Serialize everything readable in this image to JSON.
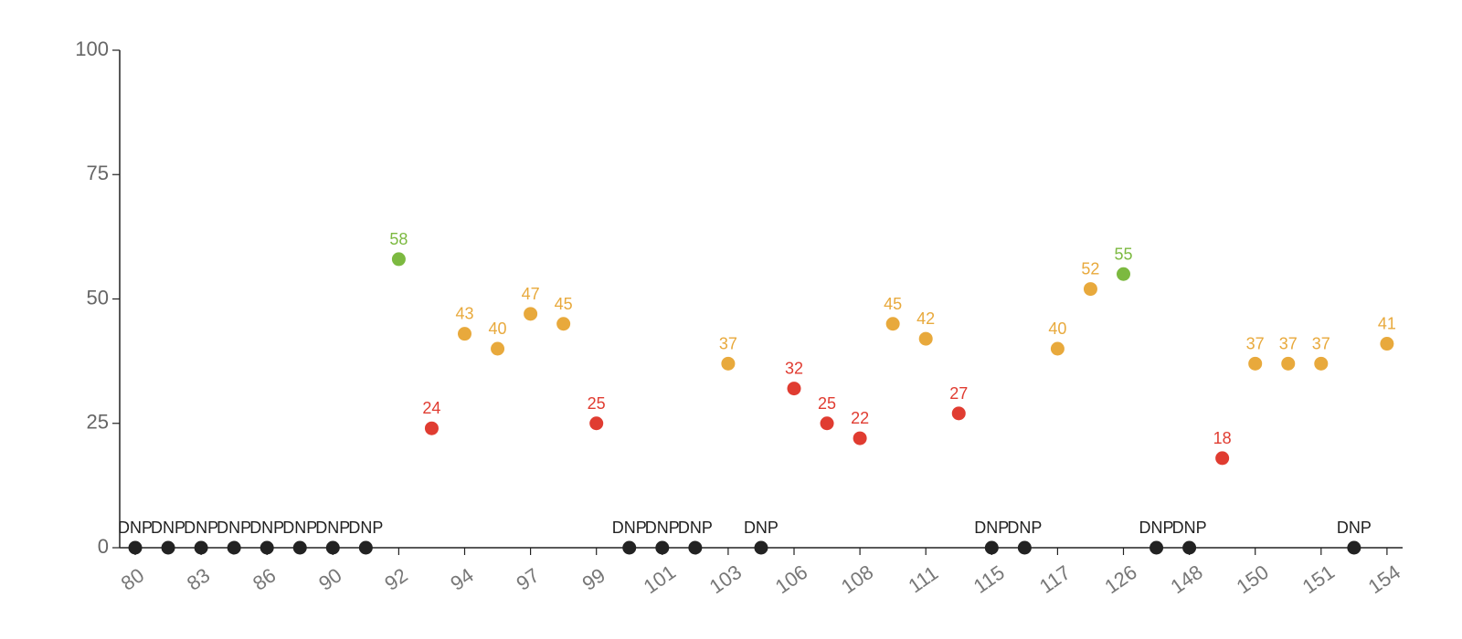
{
  "chart_data": {
    "type": "scatter",
    "y_ticks": [
      0,
      25,
      50,
      75,
      100
    ],
    "ylim": [
      0,
      100
    ],
    "x_tick_labels": [
      "80",
      "83",
      "86",
      "90",
      "92",
      "94",
      "97",
      "99",
      "101",
      "103",
      "106",
      "108",
      "111",
      "115",
      "117",
      "126",
      "148",
      "150",
      "151",
      "154"
    ],
    "dnp_text": "DNP",
    "colors": {
      "dnp": "#222222",
      "low": "#e03c31",
      "mid": "#e8a93c",
      "high": "#7cb940"
    },
    "points": [
      {
        "value": 0,
        "label": "DNP",
        "status": "dnp"
      },
      {
        "value": 0,
        "label": "DNP",
        "status": "dnp"
      },
      {
        "value": 0,
        "label": "DNP",
        "status": "dnp"
      },
      {
        "value": 0,
        "label": "DNP",
        "status": "dnp"
      },
      {
        "value": 0,
        "label": "DNP",
        "status": "dnp"
      },
      {
        "value": 0,
        "label": "DNP",
        "status": "dnp"
      },
      {
        "value": 0,
        "label": "DNP",
        "status": "dnp"
      },
      {
        "value": 0,
        "label": "DNP",
        "status": "dnp"
      },
      {
        "value": 58,
        "label": "58",
        "status": "high"
      },
      {
        "value": 24,
        "label": "24",
        "status": "low"
      },
      {
        "value": 43,
        "label": "43",
        "status": "mid"
      },
      {
        "value": 40,
        "label": "40",
        "status": "mid"
      },
      {
        "value": 47,
        "label": "47",
        "status": "mid"
      },
      {
        "value": 45,
        "label": "45",
        "status": "mid"
      },
      {
        "value": 25,
        "label": "25",
        "status": "low"
      },
      {
        "value": 0,
        "label": "DNP",
        "status": "dnp"
      },
      {
        "value": 0,
        "label": "DNP",
        "status": "dnp"
      },
      {
        "value": 0,
        "label": "DNP",
        "status": "dnp"
      },
      {
        "value": 37,
        "label": "37",
        "status": "mid"
      },
      {
        "value": 0,
        "label": "DNP",
        "status": "dnp"
      },
      {
        "value": 32,
        "label": "32",
        "status": "low"
      },
      {
        "value": 25,
        "label": "25",
        "status": "low"
      },
      {
        "value": 22,
        "label": "22",
        "status": "low"
      },
      {
        "value": 45,
        "label": "45",
        "status": "mid"
      },
      {
        "value": 42,
        "label": "42",
        "status": "mid"
      },
      {
        "value": 27,
        "label": "27",
        "status": "low"
      },
      {
        "value": 0,
        "label": "DNP",
        "status": "dnp"
      },
      {
        "value": 0,
        "label": "DNP",
        "status": "dnp"
      },
      {
        "value": 40,
        "label": "40",
        "status": "mid"
      },
      {
        "value": 52,
        "label": "52",
        "status": "mid"
      },
      {
        "value": 55,
        "label": "55",
        "status": "high"
      },
      {
        "value": 0,
        "label": "DNP",
        "status": "dnp"
      },
      {
        "value": 0,
        "label": "DNP",
        "status": "dnp"
      },
      {
        "value": 18,
        "label": "18",
        "status": "low"
      },
      {
        "value": 37,
        "label": "37",
        "status": "mid"
      },
      {
        "value": 37,
        "label": "37",
        "status": "mid"
      },
      {
        "value": 37,
        "label": "37",
        "status": "mid"
      },
      {
        "value": 0,
        "label": "DNP",
        "status": "dnp"
      },
      {
        "value": 41,
        "label": "41",
        "status": "mid"
      }
    ]
  }
}
